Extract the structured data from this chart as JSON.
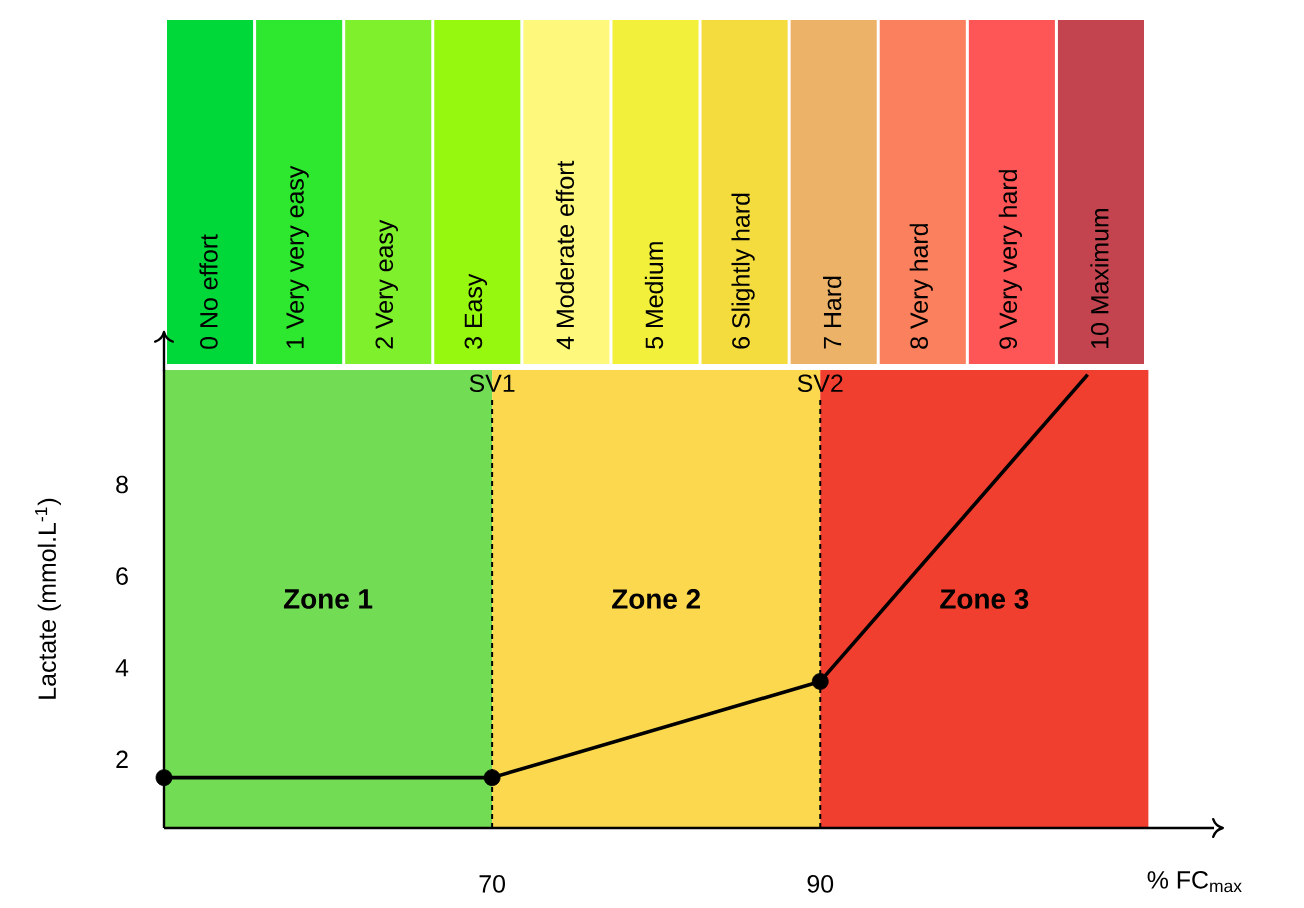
{
  "chart_data": [
    {
      "type": "other",
      "categories": [
        "0 No effort",
        "1 Very very easy",
        "2 Very easy",
        "3 Easy",
        "4 Moderate effort",
        "5 Medium",
        "6 Slightly hard",
        "7 Hard",
        "8 Very hard",
        "9 Very very hard",
        "10 Maximum"
      ],
      "colors": [
        "#00d83a",
        "#2de82e",
        "#7ef02c",
        "#96f80e",
        "#fef97c",
        "#f2f03a",
        "#f5dc3e",
        "#ecb368",
        "#fb805d",
        "#fe5656",
        "#c3444e"
      ]
    },
    {
      "type": "line",
      "xlabel": "% FC$_{max}$",
      "ylabel": "Lactate (mmol.L$^{-1}$)",
      "xlim": [
        50,
        114
      ],
      "ylim": [
        0.5,
        10.5
      ],
      "xticks": [
        70,
        90
      ],
      "yticks": [
        2,
        4,
        6,
        8
      ],
      "bands": [
        {
          "axis": "x",
          "from": 50,
          "to": 70,
          "label": "Zone 1",
          "color": "#73dc55"
        },
        {
          "axis": "x",
          "from": 70,
          "to": 90,
          "label": "Zone 2",
          "color": "#fcd84e"
        },
        {
          "axis": "x",
          "from": 90,
          "to": 110,
          "label": "Zone 3",
          "color": "#f03f2f"
        }
      ],
      "ref_lines": [
        {
          "axis": "x",
          "value": 70,
          "label": "SV1",
          "line_style": "dotted",
          "color": "#000000"
        },
        {
          "axis": "x",
          "value": 90,
          "label": "SV2",
          "line_style": "dotted",
          "color": "#000000"
        }
      ],
      "series": [
        {
          "type": "line",
          "color": "#000000",
          "marker": "none",
          "x": [
            50,
            70,
            90,
            106.3
          ],
          "values": [
            1.6,
            1.6,
            3.7,
            10.4
          ]
        },
        {
          "type": "scatter",
          "color": "#000000",
          "marker": "circle",
          "x": [
            50,
            70,
            90
          ],
          "values": [
            1.6,
            1.6,
            3.7
          ]
        }
      ]
    }
  ]
}
